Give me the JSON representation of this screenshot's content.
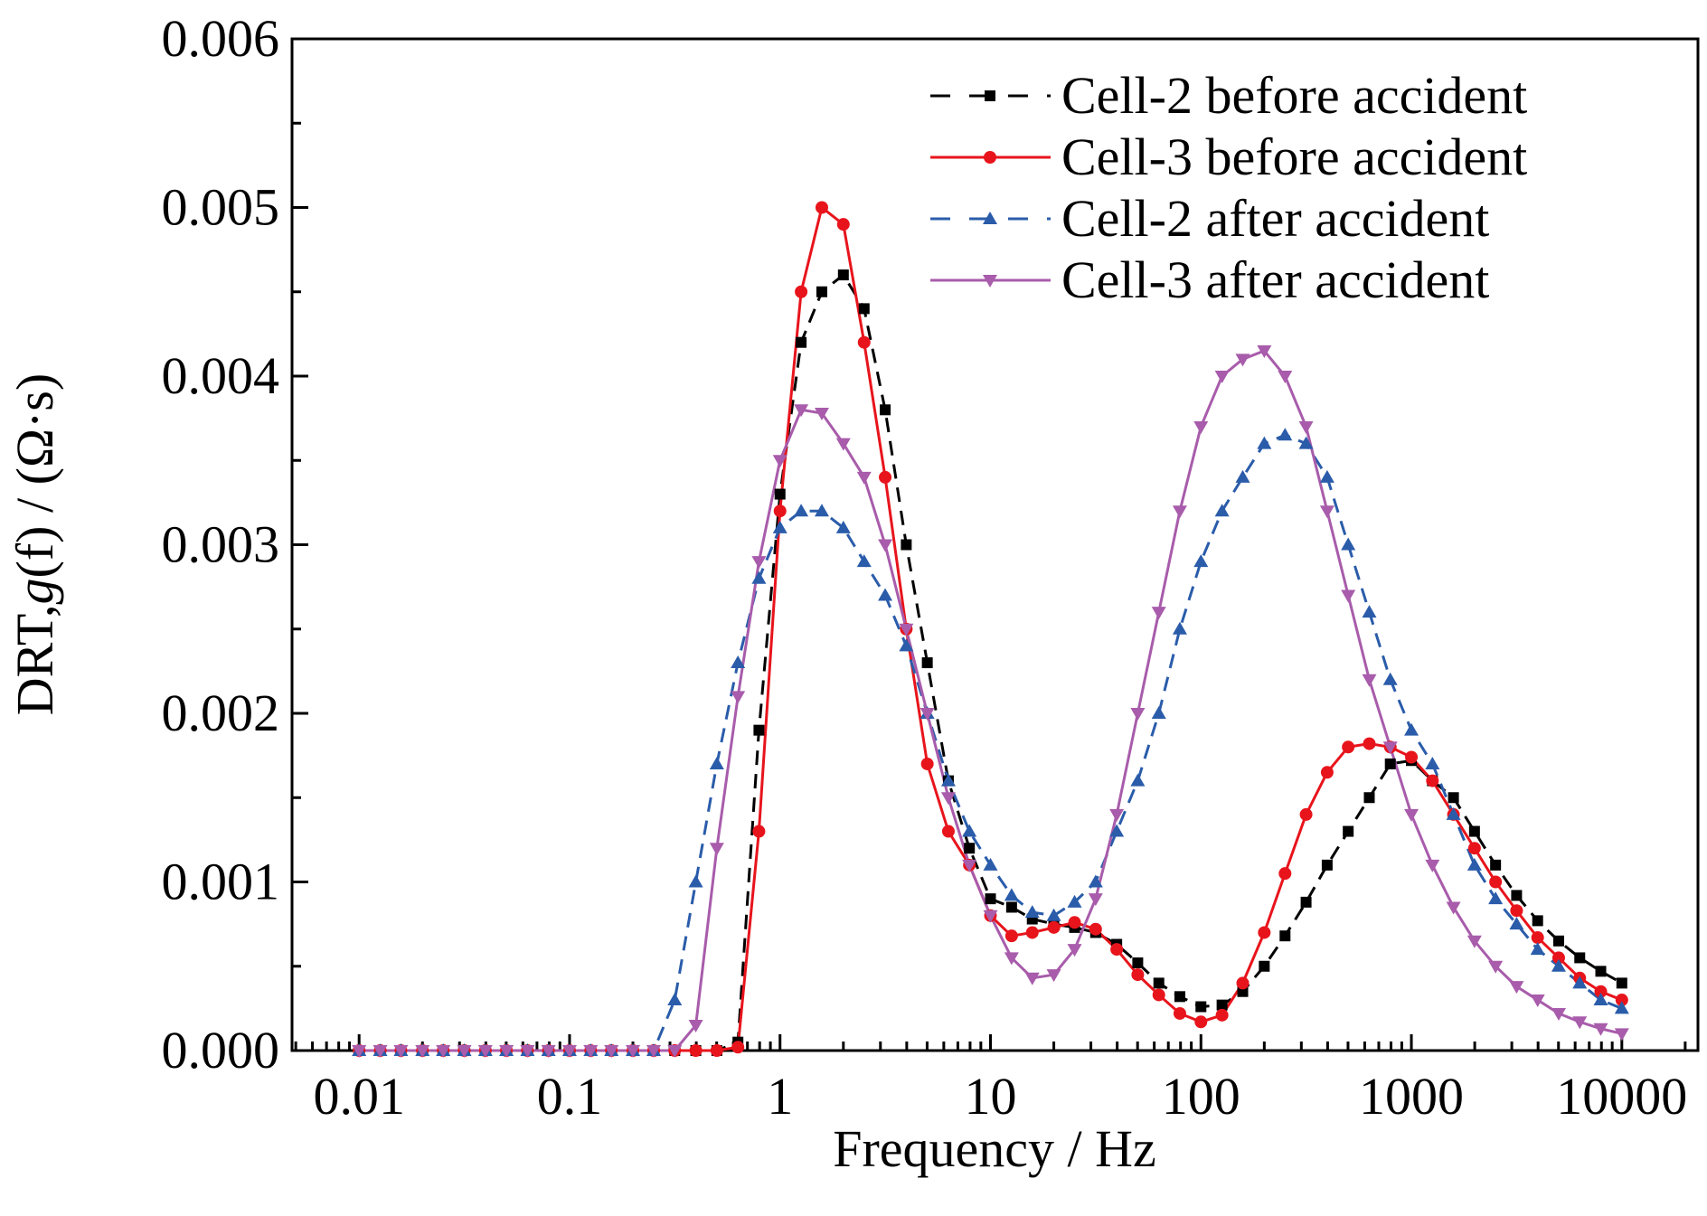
{
  "chart_data": {
    "type": "line",
    "xlabel": "Frequency / Hz",
    "ylabel_parts": [
      "DRT,",
      "g",
      "(f) / (Ω·s)"
    ],
    "x": [
      0.01,
      0.0126,
      0.0158,
      0.02,
      0.0251,
      0.0316,
      0.0398,
      0.0501,
      0.0631,
      0.0794,
      0.1,
      0.126,
      0.158,
      0.2,
      0.251,
      0.316,
      0.398,
      0.501,
      0.631,
      0.794,
      1,
      1.26,
      1.58,
      2,
      2.51,
      3.16,
      3.98,
      5.01,
      6.31,
      7.94,
      10,
      12.6,
      15.8,
      20,
      25.1,
      31.6,
      39.8,
      50.1,
      63.1,
      79.4,
      100,
      126,
      158,
      200,
      251,
      316,
      398,
      501,
      631,
      794,
      1000,
      1259,
      1585,
      1995,
      2512,
      3162,
      3981,
      5012,
      6310,
      7943,
      10000
    ],
    "series": [
      {
        "name": "Cell-2 before accident",
        "color": "#000000",
        "dash": true,
        "marker": "square",
        "values": [
          0,
          0,
          0,
          0,
          0,
          0,
          0,
          0,
          0,
          0,
          0,
          0,
          0,
          0,
          0,
          0,
          0,
          0,
          5e-05,
          0.0019,
          0.0033,
          0.0042,
          0.0045,
          0.0046,
          0.0044,
          0.0038,
          0.003,
          0.0023,
          0.0016,
          0.0012,
          0.0009,
          0.00085,
          0.00078,
          0.00075,
          0.00073,
          0.0007,
          0.00063,
          0.00052,
          0.0004,
          0.00032,
          0.00026,
          0.00027,
          0.00035,
          0.0005,
          0.00068,
          0.00088,
          0.0011,
          0.0013,
          0.0015,
          0.0017,
          0.00172,
          0.0016,
          0.0015,
          0.0013,
          0.0011,
          0.00092,
          0.00077,
          0.00065,
          0.00055,
          0.00047,
          0.0004
        ]
      },
      {
        "name": "Cell-3 before accident",
        "color": "#e8141c",
        "dash": false,
        "marker": "circle",
        "values": [
          0,
          0,
          0,
          0,
          0,
          0,
          0,
          0,
          0,
          0,
          0,
          0,
          0,
          0,
          0,
          0,
          0,
          0,
          2e-05,
          0.0013,
          0.0032,
          0.0045,
          0.005,
          0.0049,
          0.0042,
          0.0034,
          0.0025,
          0.0017,
          0.0013,
          0.0011,
          0.0008,
          0.00068,
          0.0007,
          0.00073,
          0.00076,
          0.00072,
          0.0006,
          0.00045,
          0.00033,
          0.00022,
          0.00017,
          0.00021,
          0.0004,
          0.0007,
          0.00105,
          0.0014,
          0.00165,
          0.0018,
          0.00182,
          0.0018,
          0.00174,
          0.0016,
          0.0014,
          0.0012,
          0.001,
          0.00083,
          0.00067,
          0.00055,
          0.00043,
          0.00035,
          0.0003
        ]
      },
      {
        "name": "Cell-2 after accident",
        "color": "#2a5caa",
        "dash": true,
        "marker": "triangle-up",
        "values": [
          0,
          0,
          0,
          0,
          0,
          0,
          0,
          0,
          0,
          0,
          0,
          0,
          0,
          0,
          0,
          0.0003,
          0.001,
          0.0017,
          0.0023,
          0.0028,
          0.0031,
          0.0032,
          0.0032,
          0.0031,
          0.0029,
          0.0027,
          0.0024,
          0.002,
          0.0016,
          0.0013,
          0.0011,
          0.00092,
          0.00082,
          0.0008,
          0.00088,
          0.001,
          0.0013,
          0.0016,
          0.002,
          0.0025,
          0.0029,
          0.0032,
          0.0034,
          0.0036,
          0.00365,
          0.0036,
          0.0034,
          0.003,
          0.0026,
          0.0022,
          0.0019,
          0.0017,
          0.0014,
          0.0011,
          0.0009,
          0.00075,
          0.0006,
          0.0005,
          0.0004,
          0.0003,
          0.00025
        ]
      },
      {
        "name": "Cell-3 after accident",
        "color": "#a85cab",
        "dash": false,
        "marker": "triangle-down",
        "values": [
          0,
          0,
          0,
          0,
          0,
          0,
          0,
          0,
          0,
          0,
          0,
          0,
          0,
          0,
          0,
          0,
          0.00015,
          0.0012,
          0.0021,
          0.0029,
          0.0035,
          0.0038,
          0.00378,
          0.0036,
          0.0034,
          0.003,
          0.0025,
          0.002,
          0.0015,
          0.0011,
          0.0008,
          0.00055,
          0.00043,
          0.00045,
          0.0006,
          0.0009,
          0.0014,
          0.002,
          0.0026,
          0.0032,
          0.0037,
          0.004,
          0.0041,
          0.00415,
          0.004,
          0.0037,
          0.0032,
          0.0027,
          0.0022,
          0.0018,
          0.0014,
          0.0011,
          0.00085,
          0.00065,
          0.0005,
          0.00038,
          0.0003,
          0.00022,
          0.00017,
          0.00013,
          0.0001
        ]
      }
    ],
    "xlog": true,
    "xlim": [
      0.0048,
      23000
    ],
    "xticks": [
      0.01,
      0.1,
      1,
      10,
      100,
      1000,
      10000
    ],
    "ylim": [
      0,
      0.006
    ],
    "yticks": [
      {
        "value": 0,
        "label": "0.000"
      },
      {
        "value": 0.001,
        "label": "0.001"
      },
      {
        "value": 0.002,
        "label": "0.002"
      },
      {
        "value": 0.003,
        "label": "0.003"
      },
      {
        "value": 0.004,
        "label": "0.004"
      },
      {
        "value": 0.005,
        "label": "0.005"
      },
      {
        "value": 0.006,
        "label": "0.006"
      }
    ],
    "minor_ticks": true,
    "grid": false,
    "legend": "upper right"
  }
}
